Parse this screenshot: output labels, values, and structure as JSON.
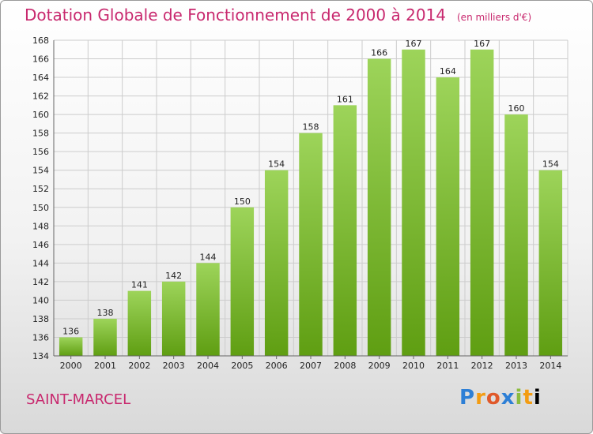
{
  "header": {
    "title": "Dotation Globale de Fonctionnement de 2000 à 2014",
    "unit": "(en milliers d'€)"
  },
  "footer": {
    "commune": "SAINT-MARCEL",
    "logo_letters": [
      "P",
      "r",
      "o",
      "x",
      "i",
      "t",
      "i"
    ]
  },
  "colors": {
    "title": "#c8286e",
    "bar_top": "#9dd45a",
    "bar_bottom": "#5f9e12",
    "grid": "#cccccc"
  },
  "chart_data": {
    "type": "bar",
    "title": "Dotation Globale de Fonctionnement de 2000 à 2014",
    "subtitle": "(en milliers d'€)",
    "xlabel": "",
    "ylabel": "",
    "categories": [
      "2000",
      "2001",
      "2002",
      "2003",
      "2004",
      "2005",
      "2006",
      "2007",
      "2008",
      "2009",
      "2010",
      "2011",
      "2012",
      "2013",
      "2014"
    ],
    "values": [
      136,
      138,
      141,
      142,
      144,
      150,
      154,
      158,
      161,
      166,
      167,
      164,
      167,
      160,
      154
    ],
    "ylim": [
      134,
      168
    ],
    "yticks": [
      134,
      136,
      138,
      140,
      142,
      144,
      146,
      148,
      150,
      152,
      154,
      156,
      158,
      160,
      162,
      164,
      166,
      168
    ],
    "grid": true,
    "legend": "none"
  }
}
